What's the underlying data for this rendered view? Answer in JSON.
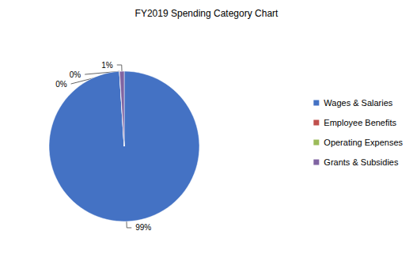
{
  "chart_data": {
    "type": "pie",
    "title": "FY2019 Spending Category Chart",
    "categories": [
      "Wages & Salaries",
      "Employee Benefits",
      "Operating Expenses",
      "Grants & Subsidies"
    ],
    "values": [
      99,
      0,
      0,
      1
    ],
    "value_labels": [
      "99%",
      "0%",
      "0%",
      "1%"
    ],
    "colors": [
      "#4472c4",
      "#c0504d",
      "#9bbb59",
      "#8064a2"
    ],
    "data_labels": true,
    "legend": "right"
  }
}
